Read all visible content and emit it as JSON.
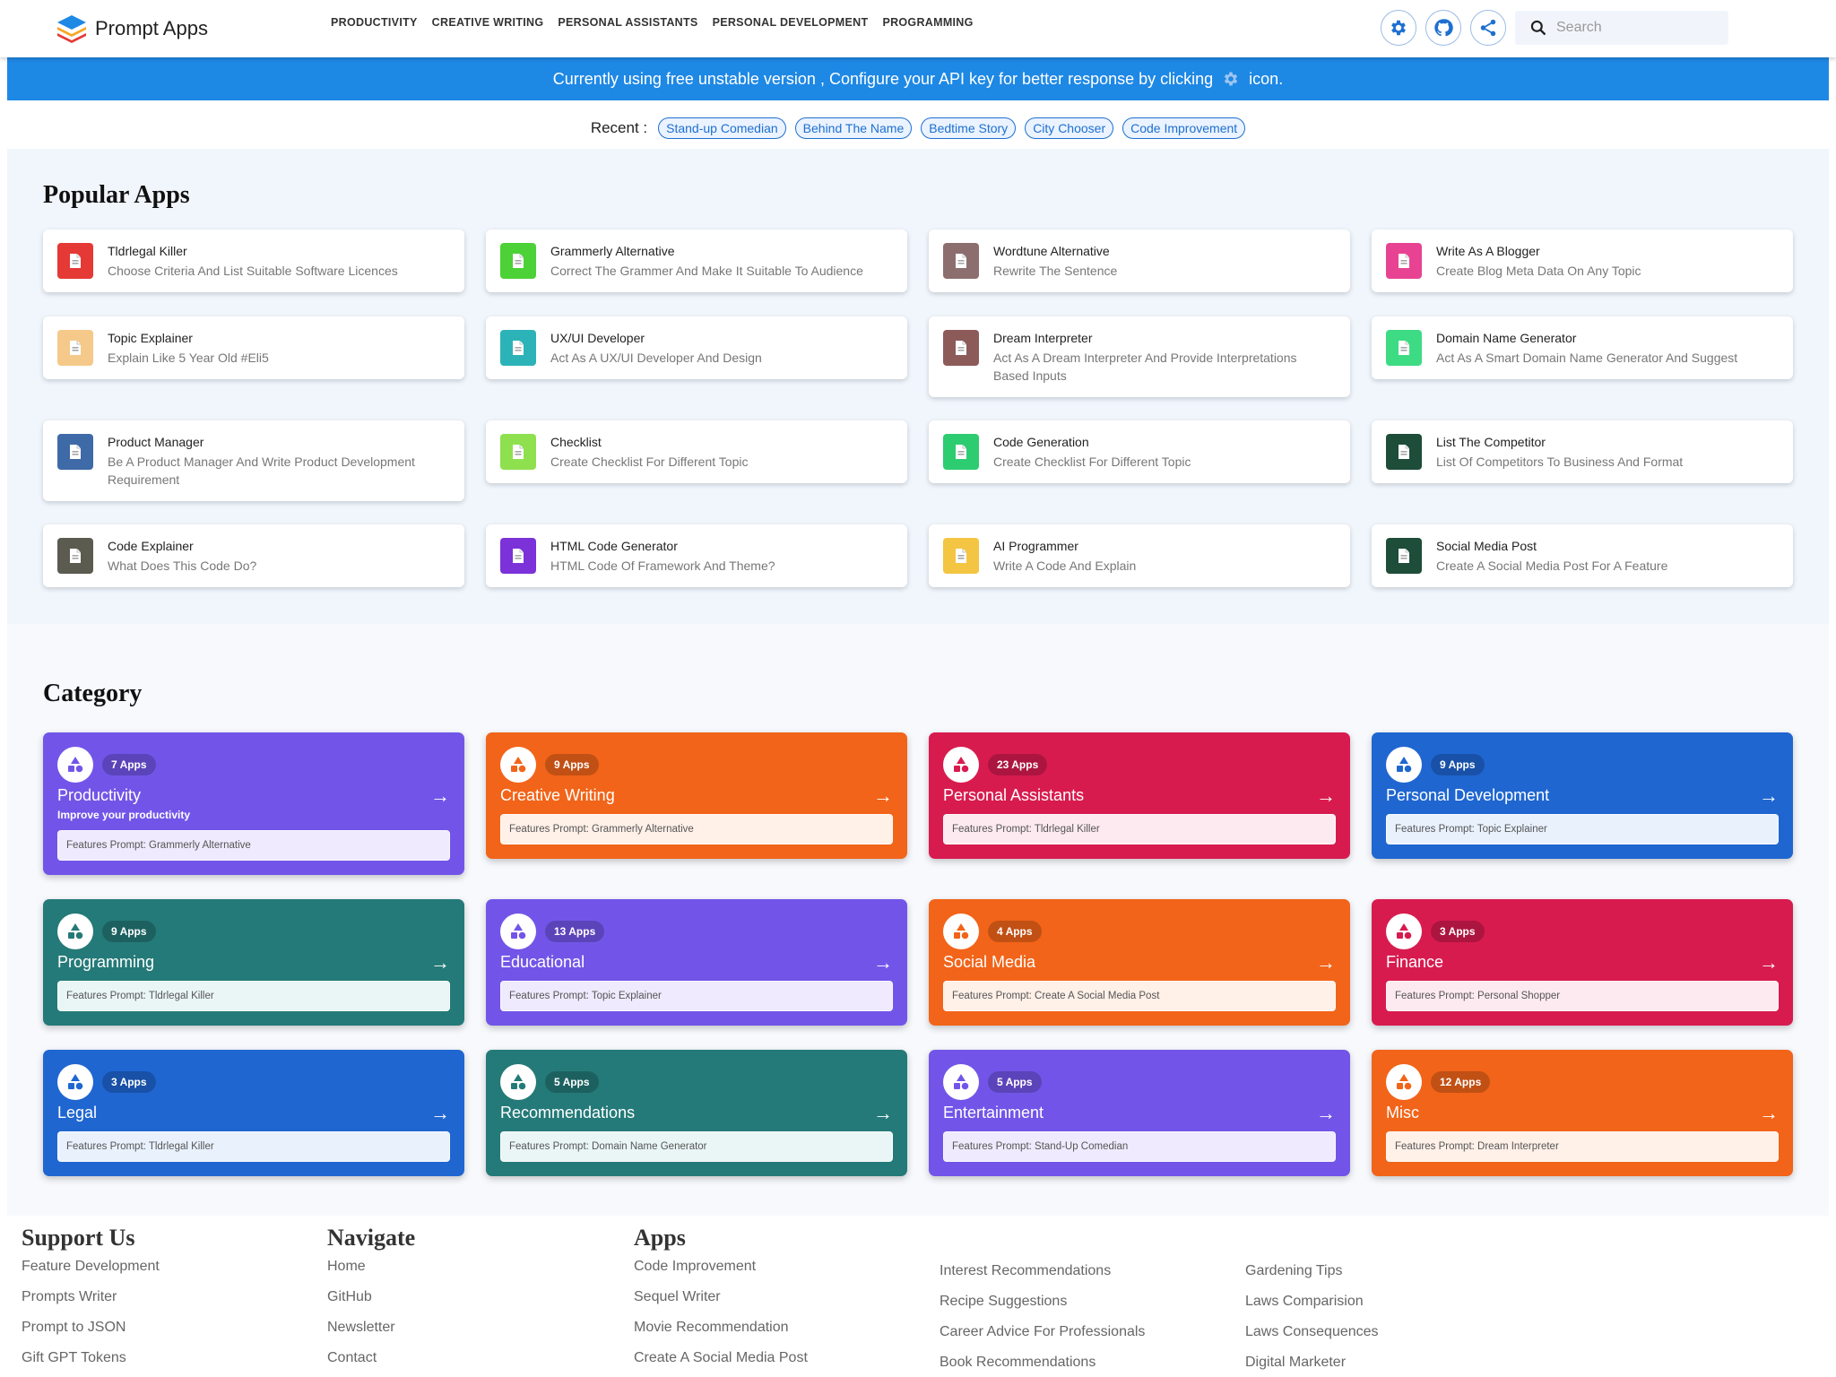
{
  "header": {
    "brand": "Prompt Apps",
    "nav": [
      "Productivity",
      "Creative Writing",
      "Personal Assistants",
      "Personal Development",
      "Programming"
    ],
    "icons": [
      "gear-icon",
      "github-icon",
      "share-icon"
    ],
    "search": {
      "placeholder": "Search",
      "value": ""
    }
  },
  "banner": {
    "text_before": "Currently using free unstable version , Configure your API key for better response by clicking",
    "text_after": "icon."
  },
  "recent": {
    "label": "Recent :",
    "items": [
      "Stand-up Comedian",
      "Behind The Name",
      "Bedtime Story",
      "City Chooser",
      "Code Improvement"
    ]
  },
  "popular": {
    "title": "Popular Apps",
    "items": [
      {
        "title": "Tldrlegal Killer",
        "desc": "Choose Criteria And List Suitable Software Licences",
        "color": "#e53935"
      },
      {
        "title": "Grammerly Alternative",
        "desc": "Correct The Grammer And Make It Suitable To Audience",
        "color": "#4cd137"
      },
      {
        "title": "Wordtune Alternative",
        "desc": "Rewrite The Sentence",
        "color": "#8d6e6e"
      },
      {
        "title": "Write As A Blogger",
        "desc": "Create Blog Meta Data On Any Topic",
        "color": "#e84393"
      },
      {
        "title": "Topic Explainer",
        "desc": "Explain Like 5 Year Old #Eli5",
        "color": "#f5c98a"
      },
      {
        "title": "UX/UI Developer",
        "desc": "Act As A UX/UI Developer And Design",
        "color": "#2bb3b8"
      },
      {
        "title": "Dream Interpreter",
        "desc": "Act As A Dream Interpreter And Provide Interpretations Based Inputs",
        "color": "#8d5a5a"
      },
      {
        "title": "Domain Name Generator",
        "desc": "Act As A Smart Domain Name Generator And Suggest",
        "color": "#3ddc84"
      },
      {
        "title": "Product Manager",
        "desc": "Be A Product Manager And Write Product Development Requirement",
        "color": "#3f6aa8"
      },
      {
        "title": "Checklist",
        "desc": "Create Checklist For Different Topic",
        "color": "#8ee04f"
      },
      {
        "title": "Code Generation",
        "desc": "Create Checklist For Different Topic",
        "color": "#2ecc71"
      },
      {
        "title": "List The Competitor",
        "desc": "List Of Competitors To Business And Format",
        "color": "#1e4d3a"
      },
      {
        "title": "Code Explainer",
        "desc": "What Does This Code Do?",
        "color": "#5b5b4f"
      },
      {
        "title": "HTML Code Generator",
        "desc": "HTML Code Of Framework And Theme?",
        "color": "#7b32d8"
      },
      {
        "title": "AI Programmer",
        "desc": "Write A Code And Explain",
        "color": "#f4c542"
      },
      {
        "title": "Social Media Post",
        "desc": "Create A Social Media Post For A Feature",
        "color": "#1e4d3a"
      }
    ]
  },
  "category": {
    "title": "Category",
    "items": [
      {
        "name": "Productivity",
        "count": "7 Apps",
        "subtitle": "Improve your productivity",
        "feature": "Features Prompt: Grammerly Alternative",
        "color": "#7255e8",
        "tint": "#efeafd"
      },
      {
        "name": "Creative Writing",
        "count": "9 Apps",
        "subtitle": "",
        "feature": "Features Prompt: Grammerly Alternative",
        "color": "#f26419",
        "tint": "#fff0e8"
      },
      {
        "name": "Personal Assistants",
        "count": "23 Apps",
        "subtitle": "",
        "feature": "Features Prompt: Tldrlegal Killer",
        "color": "#d81b4f",
        "tint": "#fdeaf0"
      },
      {
        "name": "Personal Development",
        "count": "9 Apps",
        "subtitle": "",
        "feature": "Features Prompt: Topic Explainer",
        "color": "#1f66d1",
        "tint": "#e9f1fd"
      },
      {
        "name": "Programming",
        "count": "9 Apps",
        "subtitle": "",
        "feature": "Features Prompt: Tldrlegal Killer",
        "color": "#247a78",
        "tint": "#eaf6f6"
      },
      {
        "name": "Educational",
        "count": "13 Apps",
        "subtitle": "",
        "feature": "Features Prompt: Topic Explainer",
        "color": "#7255e8",
        "tint": "#efeafd"
      },
      {
        "name": "Social Media",
        "count": "4 Apps",
        "subtitle": "",
        "feature": "Features Prompt: Create A Social Media Post",
        "color": "#f26419",
        "tint": "#fff0e8"
      },
      {
        "name": "Finance",
        "count": "3 Apps",
        "subtitle": "",
        "feature": "Features Prompt: Personal Shopper",
        "color": "#d81b4f",
        "tint": "#fdeaf0"
      },
      {
        "name": "Legal",
        "count": "3 Apps",
        "subtitle": "",
        "feature": "Features Prompt: Tldrlegal Killer",
        "color": "#1f66d1",
        "tint": "#e9f1fd"
      },
      {
        "name": "Recommendations",
        "count": "5 Apps",
        "subtitle": "",
        "feature": "Features Prompt: Domain Name Generator",
        "color": "#247a78",
        "tint": "#eaf6f6"
      },
      {
        "name": "Entertainment",
        "count": "5 Apps",
        "subtitle": "",
        "feature": "Features Prompt: Stand-Up Comedian",
        "color": "#7255e8",
        "tint": "#efeafd"
      },
      {
        "name": "Misc",
        "count": "12 Apps",
        "subtitle": "",
        "feature": "Features Prompt: Dream Interpreter",
        "color": "#f26419",
        "tint": "#fff0e8"
      }
    ]
  },
  "footer": {
    "support": {
      "title": "Support Us",
      "links": [
        "Feature Development",
        "Prompts Writer",
        "Prompt to JSON",
        "Gift GPT Tokens"
      ]
    },
    "navigate": {
      "title": "Navigate",
      "links": [
        "Home",
        "GitHub",
        "Newsletter",
        "Contact"
      ]
    },
    "apps": {
      "title": "Apps",
      "col1": [
        "Code Improvement",
        "Sequel Writer",
        "Movie Recommendation",
        "Create A Social Media Post"
      ],
      "col2": [
        "Interest Recommendations",
        "Recipe Suggestions",
        "Career Advice For Professionals",
        "Book Recommendations"
      ],
      "col3": [
        "Gardening Tips",
        "Laws Comparision",
        "Laws Consequences",
        "Digital Marketer"
      ]
    }
  }
}
